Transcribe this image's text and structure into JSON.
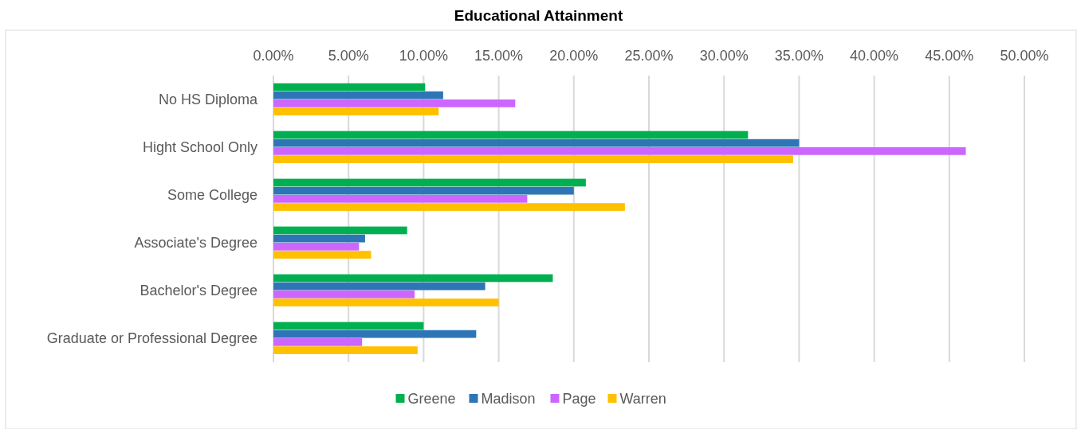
{
  "chart_data": {
    "type": "bar",
    "orientation": "horizontal",
    "title": "Educational Attainment",
    "categories": [
      "No HS Diploma",
      "Hight School Only",
      "Some College",
      "Associate's Degree",
      "Bachelor's Degree",
      "Graduate or Professional Degree"
    ],
    "series": [
      {
        "name": "Greene",
        "color": "#00b050",
        "values": [
          10.1,
          31.6,
          20.8,
          8.9,
          18.6,
          10.0
        ]
      },
      {
        "name": "Madison",
        "color": "#2e75b6",
        "values": [
          11.3,
          35.0,
          20.0,
          6.1,
          14.1,
          13.5
        ]
      },
      {
        "name": "Page",
        "color": "#cc66ff",
        "values": [
          16.1,
          46.1,
          16.9,
          5.7,
          9.4,
          5.9
        ]
      },
      {
        "name": "Warren",
        "color": "#ffc000",
        "values": [
          11.0,
          34.6,
          23.4,
          6.5,
          15.0,
          9.6
        ]
      }
    ],
    "xlim": [
      0,
      50
    ],
    "xticks": [
      {
        "value": 0,
        "label": "0.00%"
      },
      {
        "value": 5,
        "label": "5.00%"
      },
      {
        "value": 10,
        "label": "10.00%"
      },
      {
        "value": 15,
        "label": "15.00%"
      },
      {
        "value": 20,
        "label": "20.00%"
      },
      {
        "value": 25,
        "label": "25.00%"
      },
      {
        "value": 30,
        "label": "30.00%"
      },
      {
        "value": 35,
        "label": "35.00%"
      },
      {
        "value": 40,
        "label": "40.00%"
      },
      {
        "value": 45,
        "label": "45.00%"
      },
      {
        "value": 50,
        "label": "50.00%"
      }
    ],
    "grid": "x",
    "legend": "bottom"
  }
}
